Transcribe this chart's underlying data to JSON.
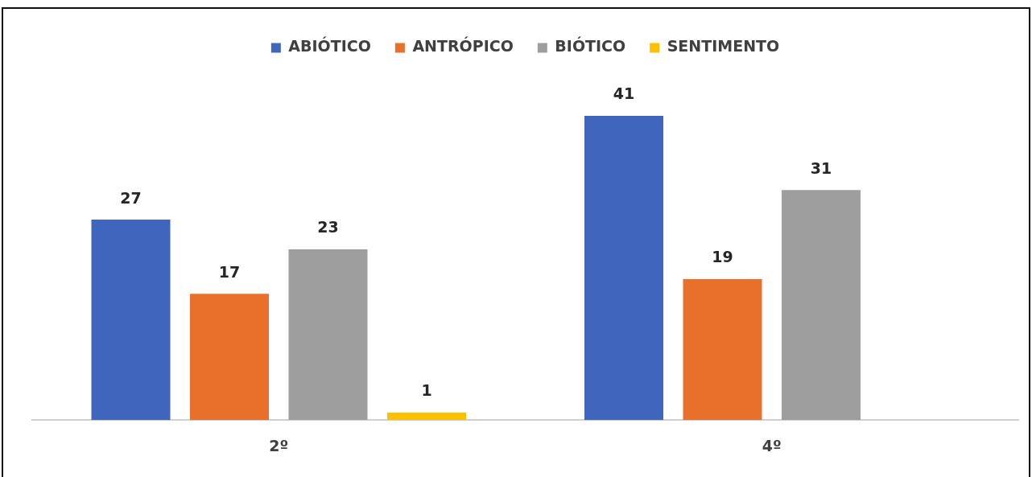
{
  "chart_data": {
    "type": "bar",
    "categories": [
      "2º",
      "4º"
    ],
    "series": [
      {
        "name": "ABIÓTICO",
        "color": "#4065bc",
        "values": [
          27,
          41
        ]
      },
      {
        "name": "ANTRÓPICO",
        "color": "#e8702b",
        "values": [
          17,
          19
        ]
      },
      {
        "name": "BIÓTICO",
        "color": "#9e9e9e",
        "values": [
          23,
          31
        ]
      },
      {
        "name": "SENTIMENTO",
        "color": "#ffc000",
        "values": [
          1,
          null
        ]
      }
    ],
    "data_labels": true,
    "legend": "top"
  }
}
